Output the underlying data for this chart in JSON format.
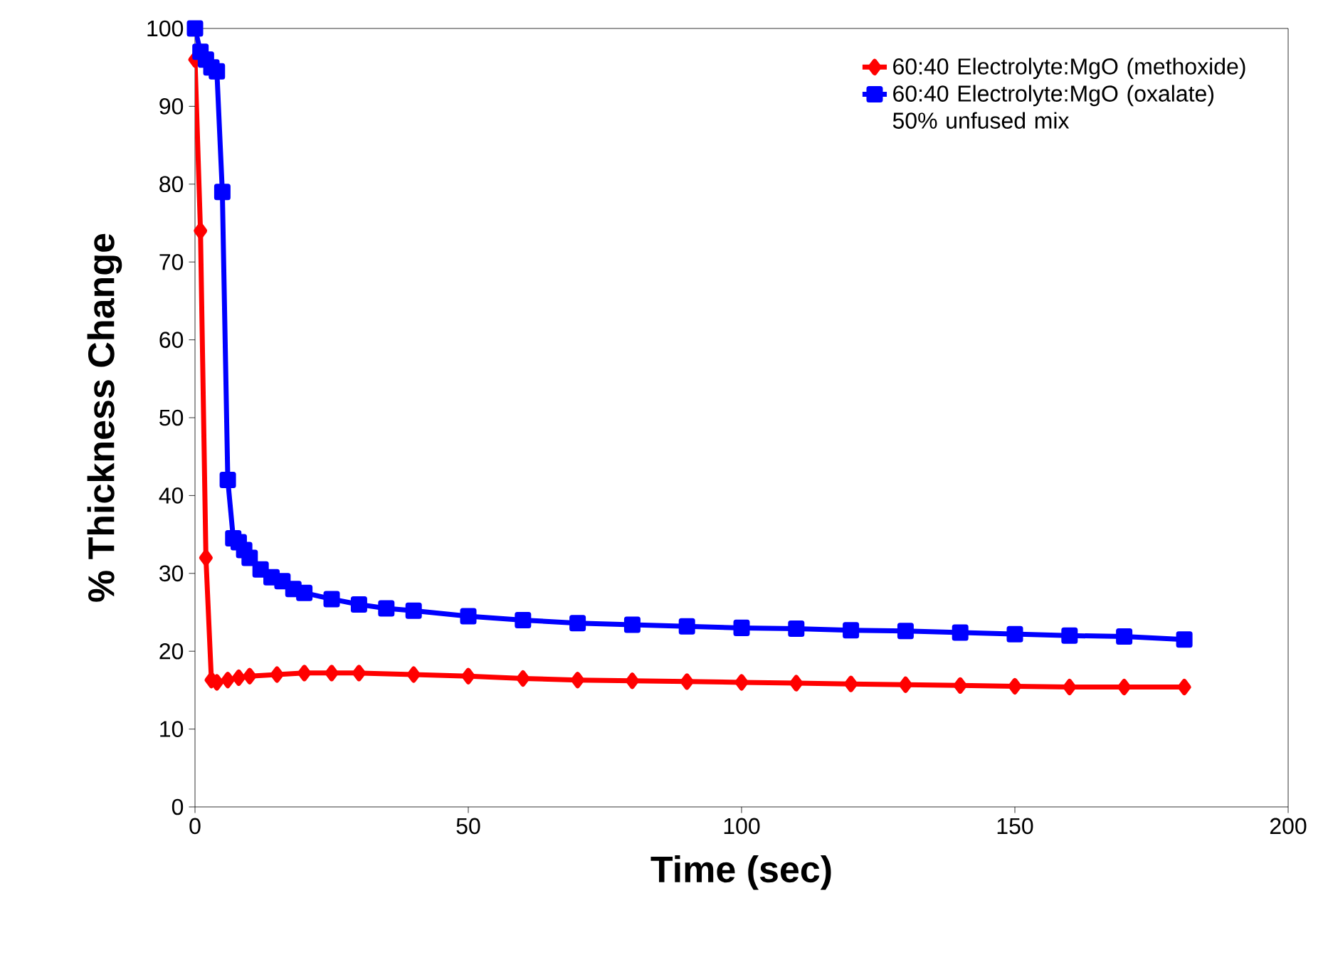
{
  "chart_data": {
    "type": "line",
    "xlabel": "Time (sec)",
    "ylabel": "% Thickness Change",
    "xlim": [
      0,
      200
    ],
    "ylim": [
      0,
      100
    ],
    "xticks": [
      0,
      50,
      100,
      150,
      200
    ],
    "yticks": [
      0,
      10,
      20,
      30,
      40,
      50,
      60,
      70,
      80,
      90,
      100
    ],
    "legend": "top right",
    "grid": false,
    "series": [
      {
        "name": "60:40 Electrolyte:MgO (methoxide)",
        "color": "#ff0000",
        "marker": "diamond",
        "x": [
          0,
          1,
          2,
          3,
          4,
          6,
          8,
          10,
          15,
          20,
          25,
          30,
          40,
          50,
          60,
          70,
          80,
          90,
          100,
          110,
          120,
          130,
          140,
          150,
          160,
          170,
          181
        ],
        "values": [
          96,
          74,
          32,
          16.3,
          16,
          16.3,
          16.6,
          16.8,
          17,
          17.2,
          17.2,
          17.2,
          17,
          16.8,
          16.5,
          16.3,
          16.2,
          16.1,
          16,
          15.9,
          15.8,
          15.7,
          15.6,
          15.5,
          15.4,
          15.4,
          15.4
        ]
      },
      {
        "name": "60:40 Electrolyte:MgO (oxalate) 50% unfused mix",
        "color": "#0000ff",
        "marker": "square",
        "x": [
          0,
          1,
          2,
          3,
          4,
          5,
          6,
          7,
          8,
          9,
          10,
          12,
          14,
          16,
          18,
          20,
          25,
          30,
          35,
          40,
          50,
          60,
          70,
          80,
          90,
          100,
          110,
          120,
          130,
          140,
          150,
          160,
          170,
          181
        ],
        "values": [
          100,
          97,
          96,
          95,
          94.5,
          79,
          42,
          34.5,
          34,
          33,
          32,
          30.5,
          29.5,
          29,
          28,
          27.5,
          26.7,
          26,
          25.5,
          25.2,
          24.5,
          24,
          23.6,
          23.4,
          23.2,
          23,
          22.9,
          22.7,
          22.6,
          22.4,
          22.2,
          22,
          21.9,
          21.5
        ]
      }
    ]
  }
}
